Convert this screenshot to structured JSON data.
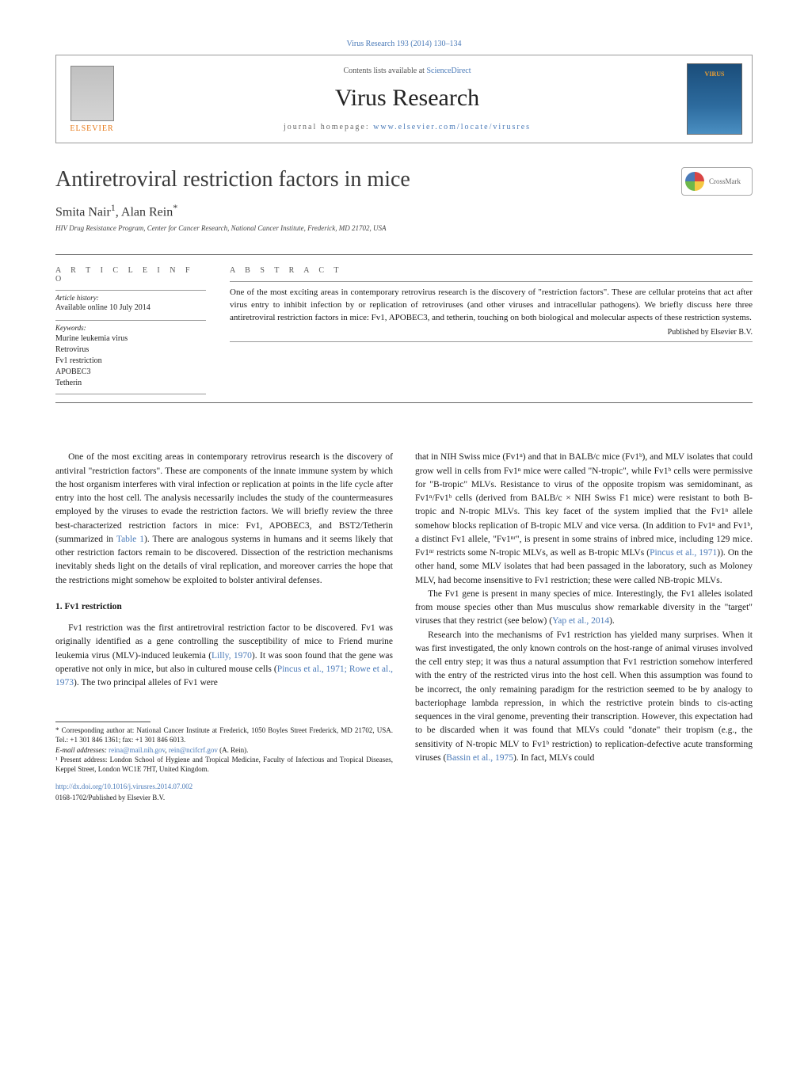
{
  "top_citation": "Virus Research 193 (2014) 130–134",
  "header": {
    "contents_label": "Contents lists available at ",
    "contents_link": "ScienceDirect",
    "journal_name": "Virus Research",
    "homepage_label": "journal homepage: ",
    "homepage_url": "www.elsevier.com/locate/virusres",
    "publisher_name": "ELSEVIER"
  },
  "article": {
    "title": "Antiretroviral restriction factors in mice",
    "authors": "Smita Nair¹, Alan Rein*",
    "affiliation": "HIV Drug Resistance Program, Center for Cancer Research, National Cancer Institute, Frederick, MD 21702, USA",
    "crossmark_label": "CrossMark"
  },
  "article_info": {
    "heading": "A R T I C L E   I N F O",
    "history_label": "Article history:",
    "history_text": "Available online 10 July 2014",
    "keywords_label": "Keywords:",
    "keywords": [
      "Murine leukemia virus",
      "Retrovirus",
      "Fv1 restriction",
      "APOBEC3",
      "Tetherin"
    ]
  },
  "abstract": {
    "heading": "A B S T R A C T",
    "text": "One of the most exciting areas in contemporary retrovirus research is the discovery of \"restriction factors\". These are cellular proteins that act after virus entry to inhibit infection by or replication of retroviruses (and other viruses and intracellular pathogens). We briefly discuss here three antiretroviral restriction factors in mice: Fv1, APOBEC3, and tetherin, touching on both biological and molecular aspects of these restriction systems.",
    "publisher_line": "Published by Elsevier B.V."
  },
  "body": {
    "left": {
      "para1": "One of the most exciting areas in contemporary retrovirus research is the discovery of antiviral \"restriction factors\". These are components of the innate immune system by which the host organism interferes with viral infection or replication at points in the life cycle after entry into the host cell. The analysis necessarily includes the study of the countermeasures employed by the viruses to evade the restriction factors. We will briefly review the three best-characterized restriction factors in mice: Fv1, APOBEC3, and BST2/Tetherin (summarized in ",
      "table_ref": "Table 1",
      "para1_cont": "). There are analogous systems in humans and it seems likely that other restriction factors remain to be discovered. Dissection of the restriction mechanisms inevitably sheds light on the details of viral replication, and moreover carries the hope that the restrictions might somehow be exploited to bolster antiviral defenses.",
      "sect1_title": "1. Fv1 restriction",
      "para2_a": "Fv1 restriction was the first antiretroviral restriction factor to be discovered. Fv1 was originally identified as a gene controlling the susceptibility of mice to Friend murine leukemia virus (MLV)-induced leukemia (",
      "ref_lilly": "Lilly, 1970",
      "para2_b": "). It was soon found that the gene was operative not only in mice, but also in cultured mouse cells (",
      "ref_pincus_rowe": "Pincus et al., 1971; Rowe et al., 1973",
      "para2_c": "). The two principal alleles of Fv1 were"
    },
    "right": {
      "para1_a": "that in NIH Swiss mice (Fv1ⁿ) and that in BALB/c mice (Fv1ᵇ), and MLV isolates that could grow well in cells from Fv1ⁿ mice were called \"N-tropic\", while Fv1ᵇ cells were permissive for \"B-tropic\" MLVs. Resistance to virus of the opposite tropism was semidominant, as Fv1ⁿ/Fv1ᵇ cells (derived from BALB/c × NIH Swiss F1 mice) were resistant to both B-tropic and N-tropic MLVs. This key facet of the system implied that the Fv1ⁿ allele somehow blocks replication of B-tropic MLV and vice versa. (In addition to Fv1ⁿ and Fv1ᵇ, a distinct Fv1 allele, \"Fv1ⁿʳ\", is present in some strains of inbred mice, including 129 mice. Fv1ⁿʳ restricts some N-tropic MLVs, as well as B-tropic MLVs (",
      "ref_pincus": "Pincus et al., 1971",
      "para1_b": ")). On the other hand, some MLV isolates that had been passaged in the laboratory, such as Moloney MLV, had become insensitive to Fv1 restriction; these were called NB-tropic MLVs.",
      "para2_a": "The Fv1 gene is present in many species of mice. Interestingly, the Fv1 alleles isolated from mouse species other than Mus musculus show remarkable diversity in the \"target\" viruses that they restrict (see below) (",
      "ref_yap": "Yap et al., 2014",
      "para2_b": ").",
      "para3_a": "Research into the mechanisms of Fv1 restriction has yielded many surprises. When it was first investigated, the only known controls on the host-range of animal viruses involved the cell entry step; it was thus a natural assumption that Fv1 restriction somehow interfered with the entry of the restricted virus into the host cell. When this assumption was found to be incorrect, the only remaining paradigm for the restriction seemed to be by analogy to bacteriophage lambda repression, in which the restrictive protein binds to cis-acting sequences in the viral genome, preventing their transcription. However, this expectation had to be discarded when it was found that MLVs could \"donate\" their tropism (e.g., the sensitivity of N-tropic MLV to Fv1ᵇ restriction) to replication-defective acute transforming viruses (",
      "ref_bassin": "Bassin et al., 1975",
      "para3_b": "). In fact, MLVs could"
    }
  },
  "footnotes": {
    "corr_a": "* Corresponding author at: National Cancer Institute at Frederick, 1050 Boyles Street Frederick, MD 21702, USA. Tel.: +1 301 846 1361; fax: +1 301 846 6013.",
    "email_label": "E-mail addresses: ",
    "email1": "reina@mail.nih.gov",
    "email_sep": ", ",
    "email2": "rein@ncifcrf.gov",
    "email_tail": " (A. Rein).",
    "present_addr": "¹ Present address: London School of Hygiene and Tropical Medicine, Faculty of Infectious and Tropical Diseases, Keppel Street, London WC1E 7HT, United Kingdom.",
    "doi": "http://dx.doi.org/10.1016/j.virusres.2014.07.002",
    "issn": "0168-1702/Published by Elsevier B.V."
  },
  "colors": {
    "link": "#4a7ab8",
    "elsevier_orange": "#e67817",
    "text": "#1a1a1a",
    "rule": "#666666"
  }
}
